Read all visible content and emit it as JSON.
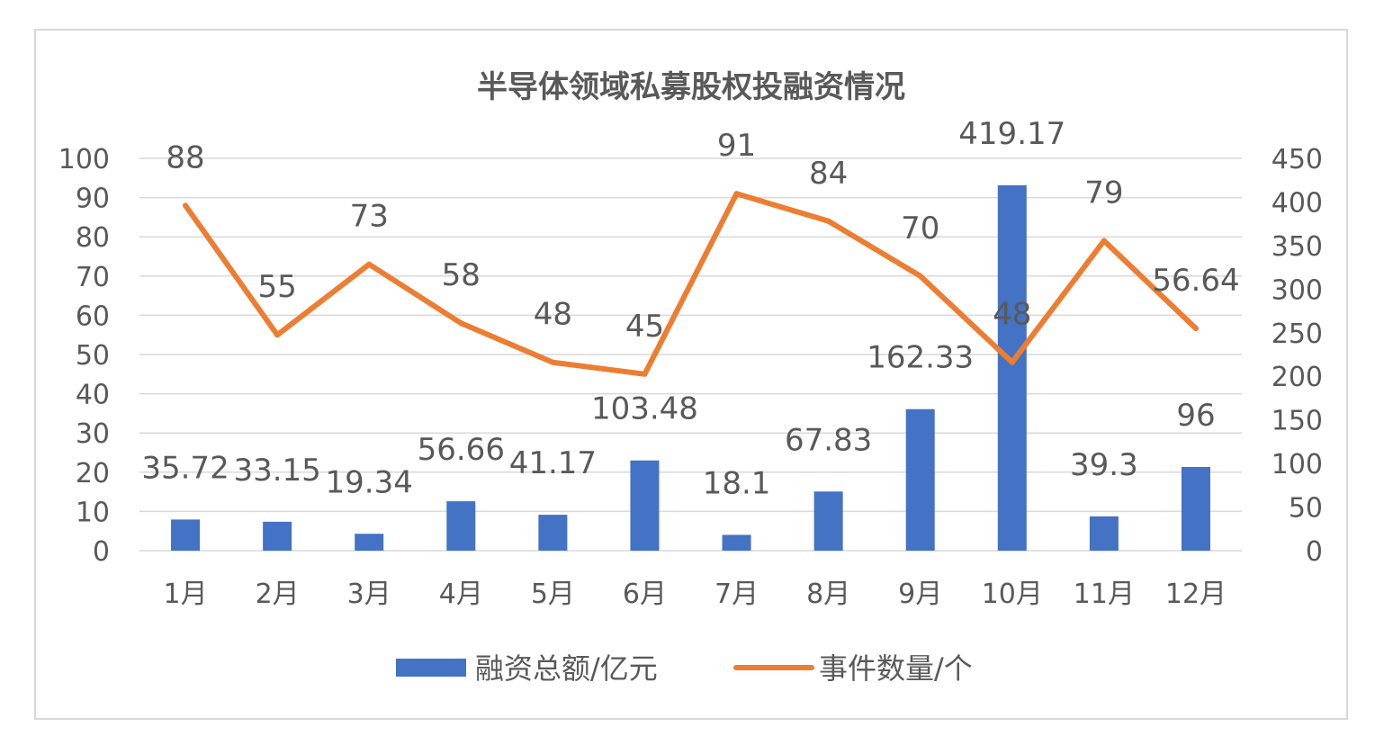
{
  "chart_data": {
    "type": "bar",
    "title": "半导体领域私募股权投融资情况",
    "categories": [
      "1月",
      "2月",
      "3月",
      "4月",
      "5月",
      "6月",
      "7月",
      "8月",
      "9月",
      "10月",
      "11月",
      "12月"
    ],
    "series": [
      {
        "name": "融资总额/亿元",
        "type": "bar",
        "axis": "right",
        "color": "#4472c4",
        "values": [
          35.72,
          33.15,
          19.34,
          56.66,
          41.17,
          103.48,
          18.1,
          67.83,
          162.33,
          419.17,
          39.3,
          96
        ],
        "labels": [
          "35.72",
          "33.15",
          "19.34",
          "56.66",
          "41.17",
          "103.48",
          "18.1",
          "67.83",
          "162.33",
          "419.17",
          "39.3",
          "96"
        ]
      },
      {
        "name": "事件数量/个",
        "type": "line",
        "axis": "left",
        "color": "#ed7d31",
        "values": [
          88,
          55,
          73,
          58,
          48,
          45,
          91,
          84,
          70,
          48,
          79,
          56.64
        ],
        "labels": [
          "88",
          "55",
          "73",
          "58",
          "48",
          "45",
          "91",
          "84",
          "70",
          "48",
          "79",
          "56.64"
        ]
      }
    ],
    "y_left": {
      "min": 0,
      "max": 100,
      "step": 10,
      "ticks": [
        "0",
        "10",
        "20",
        "30",
        "40",
        "50",
        "60",
        "70",
        "80",
        "90",
        "100"
      ]
    },
    "y_right": {
      "min": 0,
      "max": 450,
      "step": 50,
      "ticks": [
        "0",
        "50",
        "100",
        "150",
        "200",
        "250",
        "300",
        "350",
        "400",
        "450"
      ]
    },
    "grid": true,
    "legend_position": "bottom"
  }
}
